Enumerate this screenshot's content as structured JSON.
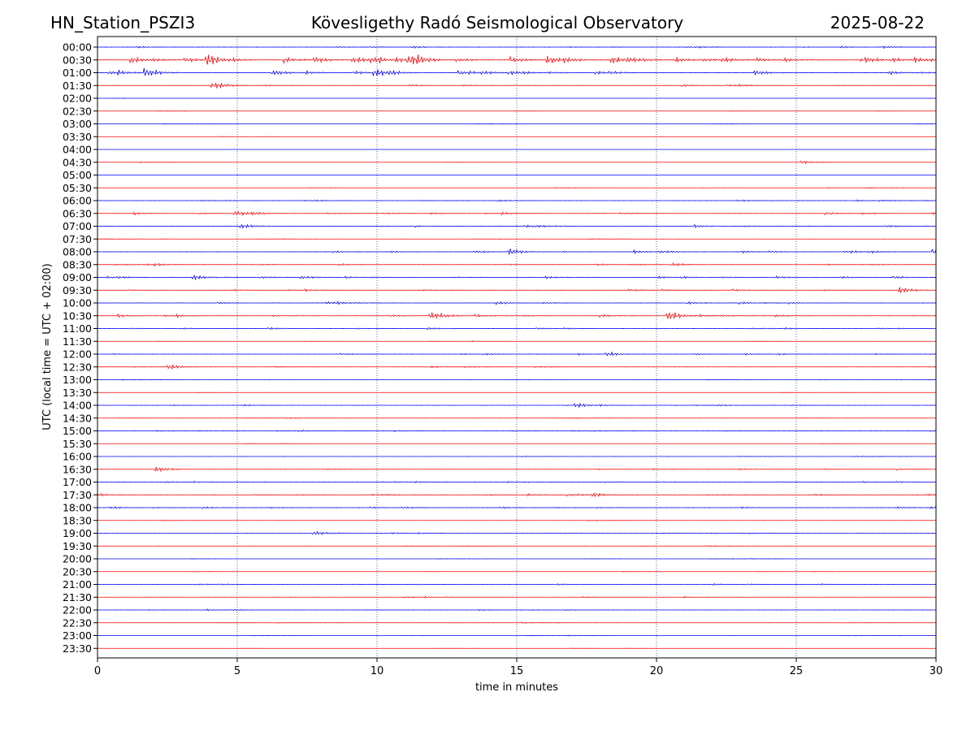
{
  "header": {
    "station": "HN_Station_PSZI3",
    "observatory": "Kövesligethy Radó Seismological Observatory",
    "date": "2025-08-22"
  },
  "chart_data": {
    "type": "line",
    "xlabel": "time in minutes",
    "ylabel": "UTC (local time = UTC + 02:00)",
    "xlim": [
      0,
      30
    ],
    "x_ticks": [
      "0",
      "5",
      "10",
      "15",
      "20",
      "25",
      "30"
    ],
    "x_tick_values": [
      0,
      5,
      10,
      15,
      20,
      25,
      30
    ],
    "grid": "vertical dotted at each x tick",
    "row_labels": [
      "00:00",
      "00:30",
      "01:00",
      "01:30",
      "02:00",
      "02:30",
      "03:00",
      "03:30",
      "04:00",
      "04:30",
      "05:00",
      "05:30",
      "06:00",
      "06:30",
      "07:00",
      "07:30",
      "08:00",
      "08:30",
      "09:00",
      "09:30",
      "10:00",
      "10:30",
      "11:00",
      "11:30",
      "12:00",
      "12:30",
      "13:00",
      "13:30",
      "14:00",
      "14:30",
      "15:00",
      "15:30",
      "16:00",
      "16:30",
      "17:00",
      "17:30",
      "18:00",
      "18:30",
      "19:00",
      "19:30",
      "20:00",
      "20:30",
      "21:00",
      "21:30",
      "22:00",
      "22:30",
      "23:00",
      "23:30"
    ],
    "series_colors": [
      "#0000ff",
      "#ff0000"
    ],
    "trace_activity": [
      0.35,
      1.0,
      0.75,
      0.45,
      0.05,
      0.1,
      0.1,
      0.06,
      0.04,
      0.15,
      0.03,
      0.15,
      0.3,
      0.45,
      0.5,
      0.2,
      0.45,
      0.45,
      0.45,
      0.4,
      0.5,
      0.5,
      0.35,
      0.15,
      0.3,
      0.3,
      0.2,
      0.15,
      0.3,
      0.2,
      0.25,
      0.1,
      0.2,
      0.3,
      0.35,
      0.4,
      0.35,
      0.2,
      0.25,
      0.2,
      0.15,
      0.1,
      0.25,
      0.25,
      0.25,
      0.2,
      0.15,
      0.1
    ],
    "events": [
      {
        "row": 1,
        "minute": 4.0,
        "amp": 1.3
      },
      {
        "row": 1,
        "minute": 11.2,
        "amp": 1.2
      },
      {
        "row": 1,
        "minute": 16.2,
        "amp": 0.9
      },
      {
        "row": 2,
        "minute": 1.8,
        "amp": 1.0
      },
      {
        "row": 2,
        "minute": 10.0,
        "amp": 0.8
      },
      {
        "row": 3,
        "minute": 4.2,
        "amp": 0.6
      },
      {
        "row": 9,
        "minute": 25.3,
        "amp": 0.3
      },
      {
        "row": 13,
        "minute": 5.0,
        "amp": 0.6
      },
      {
        "row": 14,
        "minute": 5.2,
        "amp": 0.6
      },
      {
        "row": 16,
        "minute": 14.8,
        "amp": 0.8
      },
      {
        "row": 16,
        "minute": 30.0,
        "amp": 0.6
      },
      {
        "row": 18,
        "minute": 3.5,
        "amp": 0.6
      },
      {
        "row": 19,
        "minute": 28.8,
        "amp": 0.8
      },
      {
        "row": 21,
        "minute": 12.0,
        "amp": 0.8
      },
      {
        "row": 21,
        "minute": 20.5,
        "amp": 1.0
      },
      {
        "row": 24,
        "minute": 18.3,
        "amp": 0.5
      },
      {
        "row": 25,
        "minute": 2.6,
        "amp": 0.6
      },
      {
        "row": 28,
        "minute": 17.2,
        "amp": 0.5
      },
      {
        "row": 33,
        "minute": 2.2,
        "amp": 0.6
      },
      {
        "row": 35,
        "minute": 17.8,
        "amp": 0.5
      },
      {
        "row": 38,
        "minute": 7.8,
        "amp": 0.5
      }
    ]
  }
}
